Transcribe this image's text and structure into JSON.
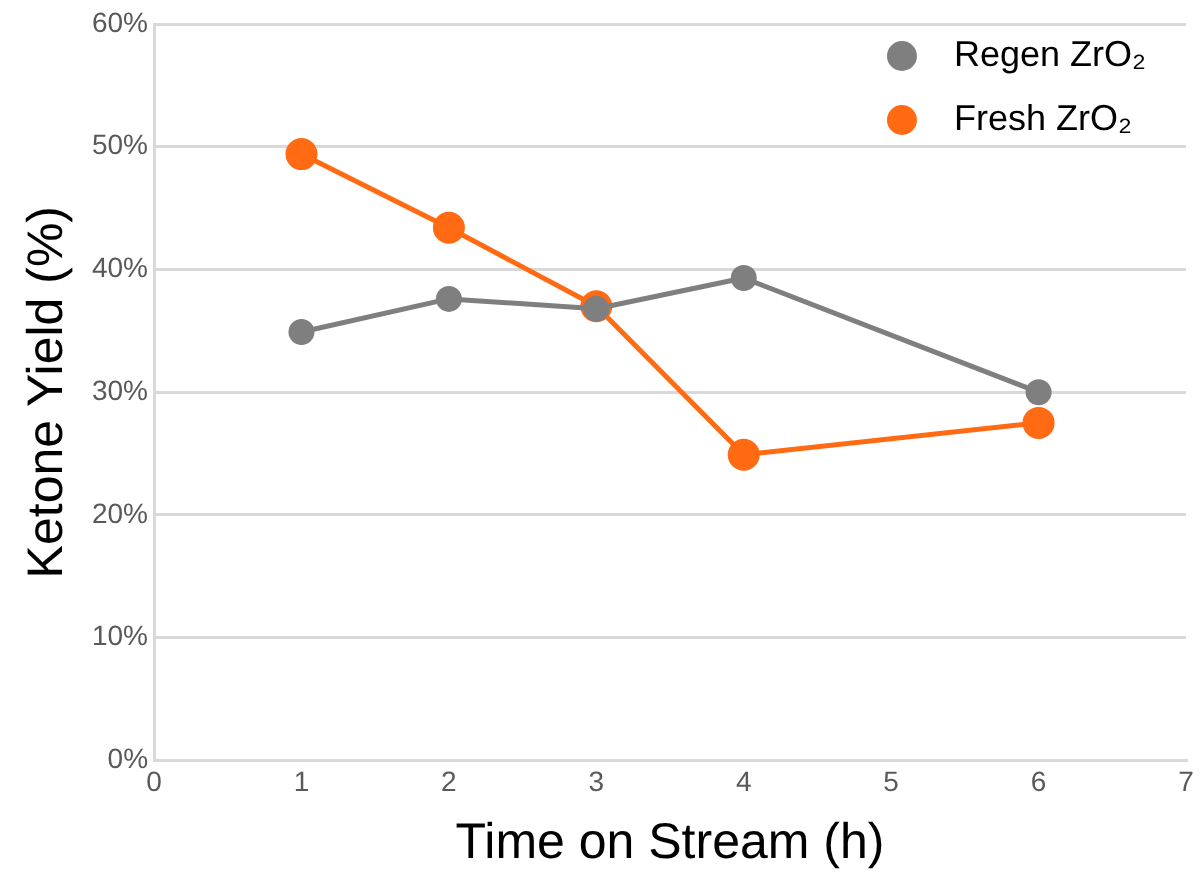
{
  "chart_data": {
    "type": "line",
    "xlabel": "Time on Stream (h)",
    "ylabel": "Ketone Yield (%)",
    "x": [
      1,
      2,
      3,
      4,
      6
    ],
    "series": [
      {
        "name": "Regen ZrO₂",
        "color": "#7f7f7f",
        "values": [
          34.9,
          37.6,
          36.8,
          39.3,
          30.0
        ]
      },
      {
        "name": "Fresh ZrO₂",
        "color": "#ff6a13",
        "values": [
          49.4,
          43.4,
          37.0,
          24.9,
          27.5
        ]
      }
    ],
    "xlim": [
      0,
      7
    ],
    "xticks": [
      0,
      1,
      2,
      3,
      4,
      5,
      6,
      7
    ],
    "ylim": [
      0,
      60
    ],
    "yticks": [
      {
        "value": 0,
        "label": "0%"
      },
      {
        "value": 10,
        "label": "10%"
      },
      {
        "value": 20,
        "label": "20%"
      },
      {
        "value": 30,
        "label": "30%"
      },
      {
        "value": 40,
        "label": "40%"
      },
      {
        "value": 50,
        "label": "50%"
      },
      {
        "value": 60,
        "label": "60%"
      }
    ],
    "grid": "y",
    "legend": "top right",
    "marker": "circle",
    "line_style": "solid"
  }
}
